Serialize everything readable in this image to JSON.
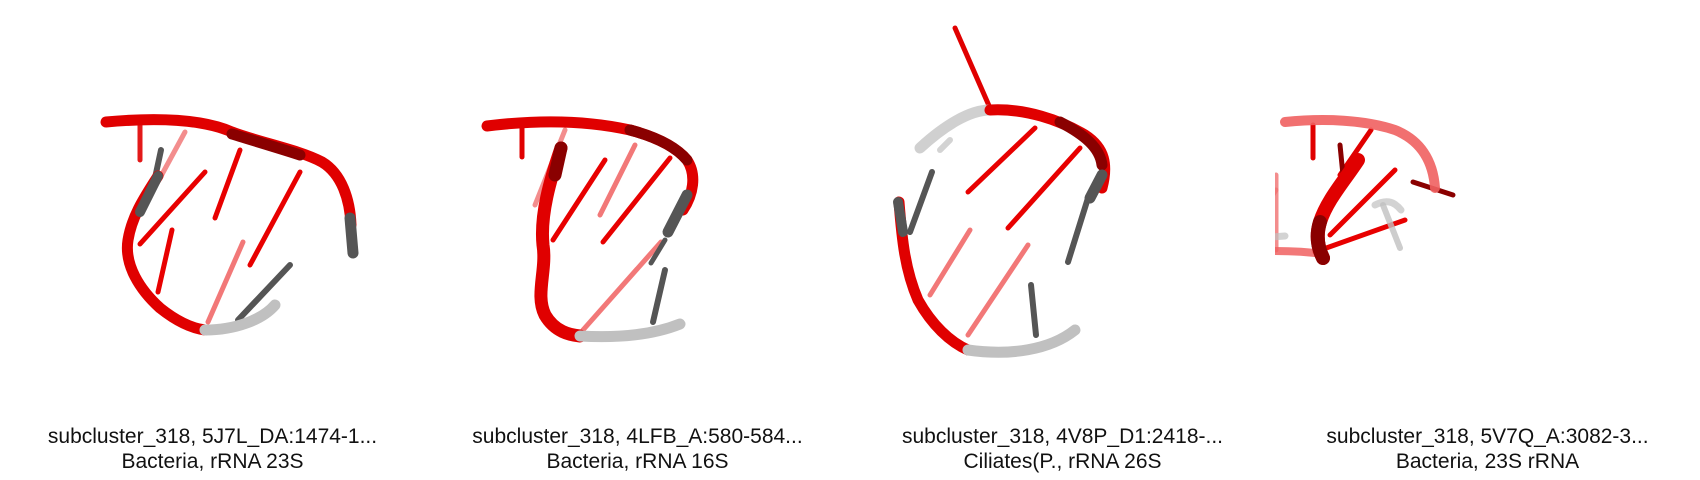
{
  "panels": [
    {
      "title": "subcluster_318, 5J7L_DA:1474-1...",
      "subtitle": "Bacteria, rRNA 23S",
      "image": "rna-structure-render"
    },
    {
      "title": "subcluster_318, 4LFB_A:580-584...",
      "subtitle": "Bacteria, rRNA 16S",
      "image": "rna-structure-render"
    },
    {
      "title": "subcluster_318, 4V8P_D1:2418-...",
      "subtitle": "Ciliates(P., rRNA 26S",
      "image": "rna-structure-render"
    },
    {
      "title": "subcluster_318, 5V7Q_A:3082-3...",
      "subtitle": "Bacteria, 23S rRNA",
      "image": "rna-structure-render"
    }
  ],
  "colors": {
    "backbone_red": "#e00000",
    "backbone_dark_red": "#8a0000",
    "backbone_gray": "#555555",
    "backbone_light_gray": "#c0c0c0",
    "base_red": "#e80000",
    "caption_text": "#111111",
    "background": "#ffffff"
  }
}
